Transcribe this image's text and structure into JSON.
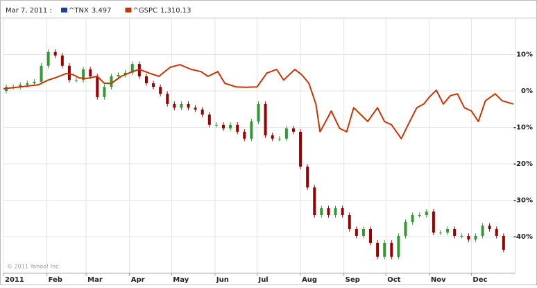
{
  "chart_data": {
    "type": "combo",
    "hover_date": "Mar 7, 2011 :",
    "copyright": "© 2011 Yahoo! Inc.",
    "xlim": [
      0,
      365
    ],
    "xticks": [
      {
        "value": 0,
        "label": "2011"
      },
      {
        "value": 31,
        "label": "Feb"
      },
      {
        "value": 59,
        "label": "Mar"
      },
      {
        "value": 90,
        "label": "Apr"
      },
      {
        "value": 120,
        "label": "May"
      },
      {
        "value": 151,
        "label": "Jun"
      },
      {
        "value": 181,
        "label": "Jul"
      },
      {
        "value": 212,
        "label": "Aug"
      },
      {
        "value": 243,
        "label": "Sep"
      },
      {
        "value": 273,
        "label": "Oct"
      },
      {
        "value": 304,
        "label": "Nov"
      },
      {
        "value": 334,
        "label": "Dec"
      }
    ],
    "ylim": [
      -50,
      20
    ],
    "yticks": [
      {
        "value": 10,
        "label": "10%"
      },
      {
        "value": 0,
        "label": "0%"
      },
      {
        "value": -10,
        "label": "-10%"
      },
      {
        "value": -20,
        "label": "-20%"
      },
      {
        "value": -30,
        "label": "-30%"
      },
      {
        "value": -40,
        "label": "-40%"
      }
    ],
    "grid": true,
    "series": [
      {
        "name": "^TNX",
        "type": "candlestick",
        "color": "#1f3f99",
        "up_color": "#339933",
        "down_color": "#990000",
        "hover_value": 3.497,
        "x": [
          2,
          7,
          12,
          17,
          22,
          27,
          32,
          37,
          42,
          47,
          52,
          57,
          62,
          67,
          72,
          77,
          82,
          87,
          92,
          97,
          102,
          107,
          112,
          117,
          122,
          127,
          132,
          137,
          142,
          147,
          152,
          157,
          162,
          167,
          172,
          177,
          182,
          187,
          192,
          197,
          202,
          207,
          212,
          217,
          222,
          227,
          232,
          237,
          242,
          247,
          252,
          257,
          262,
          267,
          272,
          277,
          282,
          287,
          292,
          297,
          302,
          307,
          312,
          317,
          322,
          327,
          332,
          337,
          342,
          347,
          352,
          357
        ],
        "open": [
          0,
          1.1,
          1.1,
          1.7,
          2.1,
          2.5,
          6.9,
          10.7,
          9.7,
          6.9,
          3.0,
          3.0,
          5.9,
          4.0,
          -1.7,
          1.1,
          4.0,
          4.4,
          5.0,
          7.4,
          4.0,
          2.1,
          1.1,
          -0.8,
          -3.6,
          -4.6,
          -3.6,
          -4.6,
          -5.1,
          -6.5,
          -9.3,
          -9.3,
          -10.3,
          -9.3,
          -11.2,
          -13.1,
          -8.4,
          -3.6,
          -12.2,
          -13.1,
          -13.1,
          -10.3,
          -11.2,
          -20.8,
          -26.5,
          -34.1,
          -32.2,
          -34.1,
          -32.2,
          -34.1,
          -37.9,
          -39.8,
          -37.9,
          -41.7,
          -45.5,
          -41.7,
          -45.5,
          -39.8,
          -36.0,
          -34.1,
          -34.1,
          -33.1,
          -38.9,
          -38.9,
          -37.9,
          -39.8,
          -39.8,
          -40.8,
          -39.8,
          -37.0,
          -37.9,
          -39.8
        ],
        "high": [
          1.8,
          1.8,
          2.4,
          2.8,
          3.2,
          7.6,
          11.4,
          11.4,
          10.4,
          7.6,
          3.7,
          6.6,
          6.6,
          4.7,
          1.8,
          4.7,
          5.1,
          5.7,
          8.1,
          8.1,
          4.7,
          2.8,
          1.8,
          -0.1,
          -2.9,
          -2.9,
          -2.9,
          -3.9,
          -4.4,
          -5.8,
          -8.6,
          -8.6,
          -8.6,
          -8.6,
          -10.5,
          -7.7,
          -2.9,
          -2.9,
          -11.5,
          -12.4,
          -9.6,
          -9.6,
          -10.5,
          -20.1,
          -25.8,
          -31.5,
          -31.5,
          -31.5,
          -31.5,
          -33.4,
          -37.2,
          -37.2,
          -37.2,
          -41.0,
          -41.0,
          -41.0,
          -39.1,
          -35.3,
          -33.4,
          -33.4,
          -32.4,
          -32.4,
          -38.2,
          -37.2,
          -37.2,
          -39.1,
          -39.1,
          -39.1,
          -36.3,
          -36.3,
          -37.2,
          -39.1
        ],
        "low": [
          -0.7,
          0.4,
          0.4,
          1.0,
          1.4,
          1.8,
          6.2,
          9.0,
          6.2,
          2.3,
          2.3,
          2.3,
          3.3,
          -2.4,
          -2.4,
          0.4,
          3.3,
          3.7,
          4.3,
          3.3,
          1.4,
          0.4,
          -1.5,
          -4.3,
          -5.3,
          -5.3,
          -5.3,
          -5.8,
          -7.2,
          -10.0,
          -10.0,
          -11.0,
          -11.0,
          -11.9,
          -13.8,
          -13.8,
          -9.1,
          -12.9,
          -13.8,
          -13.8,
          -13.8,
          -11.9,
          -21.5,
          -27.2,
          -34.8,
          -34.8,
          -34.8,
          -34.8,
          -34.8,
          -38.6,
          -40.5,
          -40.5,
          -42.4,
          -46.2,
          -46.2,
          -46.2,
          -46.2,
          -40.5,
          -36.7,
          -34.8,
          -34.8,
          -39.6,
          -39.6,
          -39.6,
          -40.5,
          -40.5,
          -41.5,
          -41.5,
          -40.5,
          -38.6,
          -40.5,
          -44.3
        ],
        "close": [
          1.1,
          1.1,
          1.7,
          2.1,
          2.5,
          6.9,
          10.7,
          9.7,
          6.9,
          3.0,
          3.0,
          5.9,
          4.0,
          -1.7,
          1.1,
          4.0,
          4.4,
          5.0,
          7.4,
          4.0,
          2.1,
          1.1,
          -0.8,
          -3.6,
          -4.6,
          -3.6,
          -4.6,
          -5.1,
          -6.5,
          -9.3,
          -9.3,
          -10.3,
          -9.3,
          -11.2,
          -13.1,
          -8.4,
          -3.6,
          -12.2,
          -13.1,
          -13.1,
          -10.3,
          -11.2,
          -20.8,
          -26.5,
          -34.1,
          -32.2,
          -34.1,
          -32.2,
          -34.1,
          -37.9,
          -39.8,
          -37.9,
          -41.7,
          -45.5,
          -41.7,
          -45.5,
          -39.8,
          -36.0,
          -34.1,
          -34.1,
          -33.1,
          -38.9,
          -38.9,
          -37.9,
          -39.8,
          -39.8,
          -40.8,
          -39.8,
          -37.0,
          -37.9,
          -39.8,
          -43.6
        ]
      },
      {
        "name": "^GSPC",
        "type": "line",
        "color": "#cc3300",
        "hover_value": {
          "value": 1310.13,
          "label": "1,310.13"
        },
        "x": [
          0,
          12,
          25,
          32,
          37,
          45,
          50,
          54,
          59,
          67,
          72,
          77,
          84,
          92,
          97,
          104,
          111,
          119,
          126,
          134,
          141,
          146,
          153,
          158,
          166,
          173,
          181,
          188,
          195,
          200,
          208,
          213,
          218,
          223,
          226,
          230,
          234,
          240,
          245,
          250,
          255,
          260,
          267,
          272,
          277,
          284,
          290,
          295,
          300,
          304,
          309,
          314,
          319,
          324,
          329,
          334,
          339,
          344,
          351,
          356,
          364
        ],
        "values": [
          0.6,
          1.1,
          1.7,
          3.0,
          3.6,
          4.8,
          4.4,
          3.6,
          3.4,
          4.0,
          2.1,
          2.1,
          4.0,
          5.3,
          5.9,
          4.9,
          4.0,
          6.5,
          7.2,
          5.9,
          5.3,
          4.0,
          5.3,
          2.1,
          1.1,
          1.0,
          1.1,
          4.9,
          5.9,
          3.0,
          5.9,
          4.4,
          2.1,
          -3.6,
          -11.2,
          -8.4,
          -5.5,
          -10.3,
          -11.2,
          -4.6,
          -6.5,
          -8.4,
          -4.6,
          -8.4,
          -9.3,
          -13.1,
          -8.4,
          -4.6,
          -3.6,
          -1.7,
          0.2,
          -3.6,
          -1.3,
          -0.8,
          -4.6,
          -5.5,
          -8.4,
          -2.7,
          -0.8,
          -2.7,
          -3.6
        ]
      }
    ]
  }
}
